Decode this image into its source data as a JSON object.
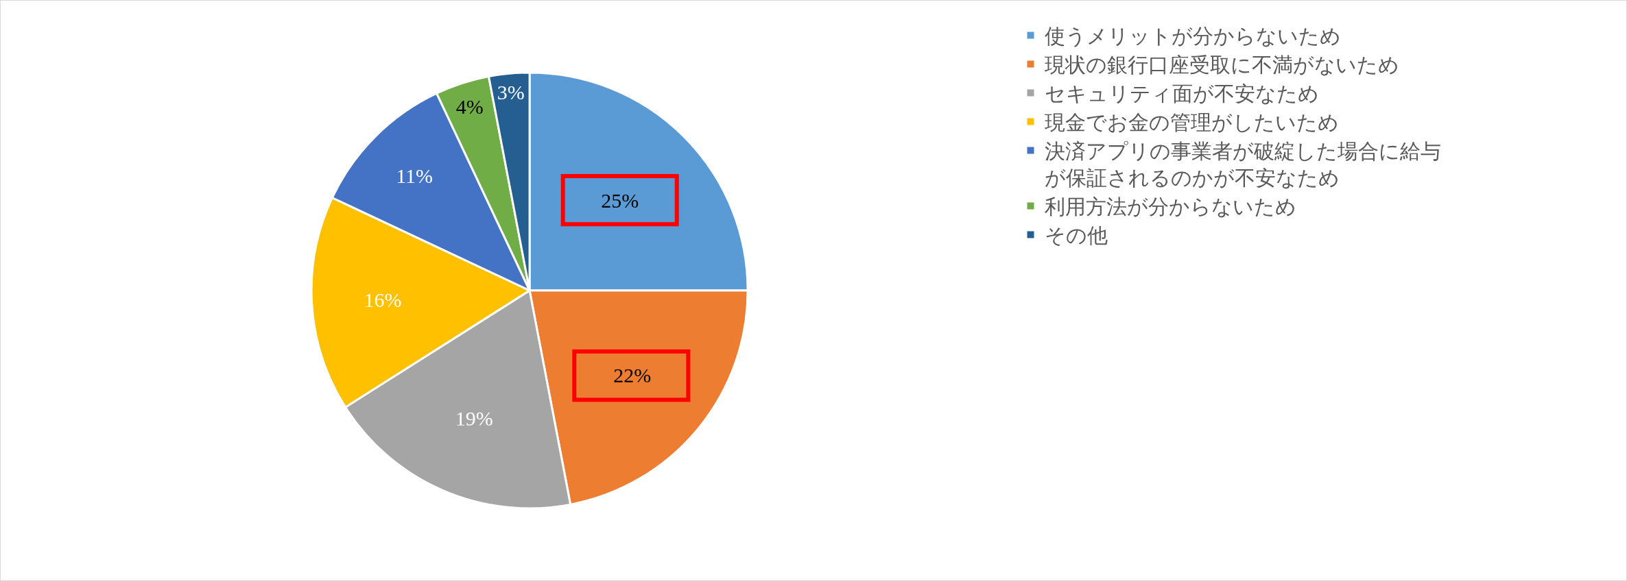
{
  "chart_data": {
    "type": "pie",
    "categories": [
      "使うメリットが分からないため",
      "現状の銀行口座受取に不満がないため",
      "セキュリティ面が不安なため",
      "現金でお金の管理がしたいため",
      "決済アプリの事業者が破綻した場合に給与が保証されるのかが不安なため",
      "利用方法が分からないため",
      "その他"
    ],
    "values": [
      25,
      22,
      19,
      16,
      11,
      4,
      3
    ],
    "colors": [
      "#5b9bd5",
      "#ed7d31",
      "#a5a5a5",
      "#ffc000",
      "#4472c4",
      "#70ad47",
      "#255e91"
    ],
    "value_labels": [
      "25%",
      "22%",
      "19%",
      "16%",
      "11%",
      "4%",
      "3%"
    ],
    "legend": "right"
  }
}
